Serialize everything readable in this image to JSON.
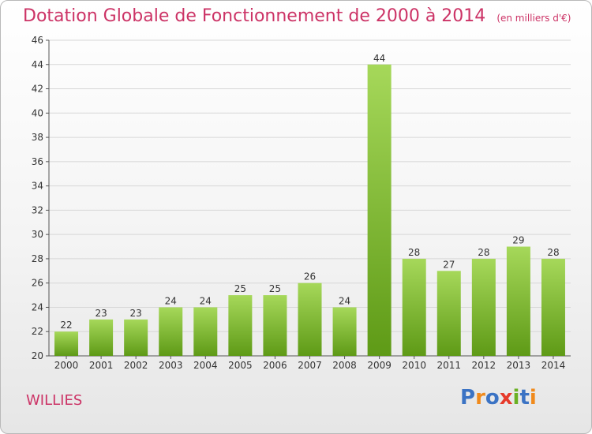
{
  "title": "Dotation Globale de Fonctionnement de 2000 à 2014",
  "unit_note": "(en milliers d'€)",
  "town": "WILLIES",
  "logo": {
    "letters": [
      "P",
      "r",
      "o",
      "x",
      "i",
      "t",
      "i"
    ],
    "colors": [
      "#3b73c4",
      "#f08a1c",
      "#3b73c4",
      "#e63a2b",
      "#6ab023",
      "#3b73c4",
      "#f08a1c"
    ]
  },
  "colors": {
    "bar_light": "#a6d85a",
    "bar_dark": "#5e9a16",
    "grid": "#d7d7d7",
    "text": "#333333"
  },
  "chart_data": {
    "type": "bar",
    "categories": [
      "2000",
      "2001",
      "2002",
      "2003",
      "2004",
      "2005",
      "2006",
      "2007",
      "2008",
      "2009",
      "2010",
      "2011",
      "2012",
      "2013",
      "2014"
    ],
    "values": [
      22,
      23,
      23,
      24,
      24,
      25,
      25,
      26,
      24,
      44,
      28,
      27,
      28,
      29,
      28
    ],
    "yticks": [
      20,
      22,
      24,
      26,
      28,
      30,
      32,
      34,
      36,
      38,
      40,
      42,
      44,
      46
    ],
    "ylim": [
      20,
      46
    ],
    "grid": true,
    "data_labels": true
  }
}
